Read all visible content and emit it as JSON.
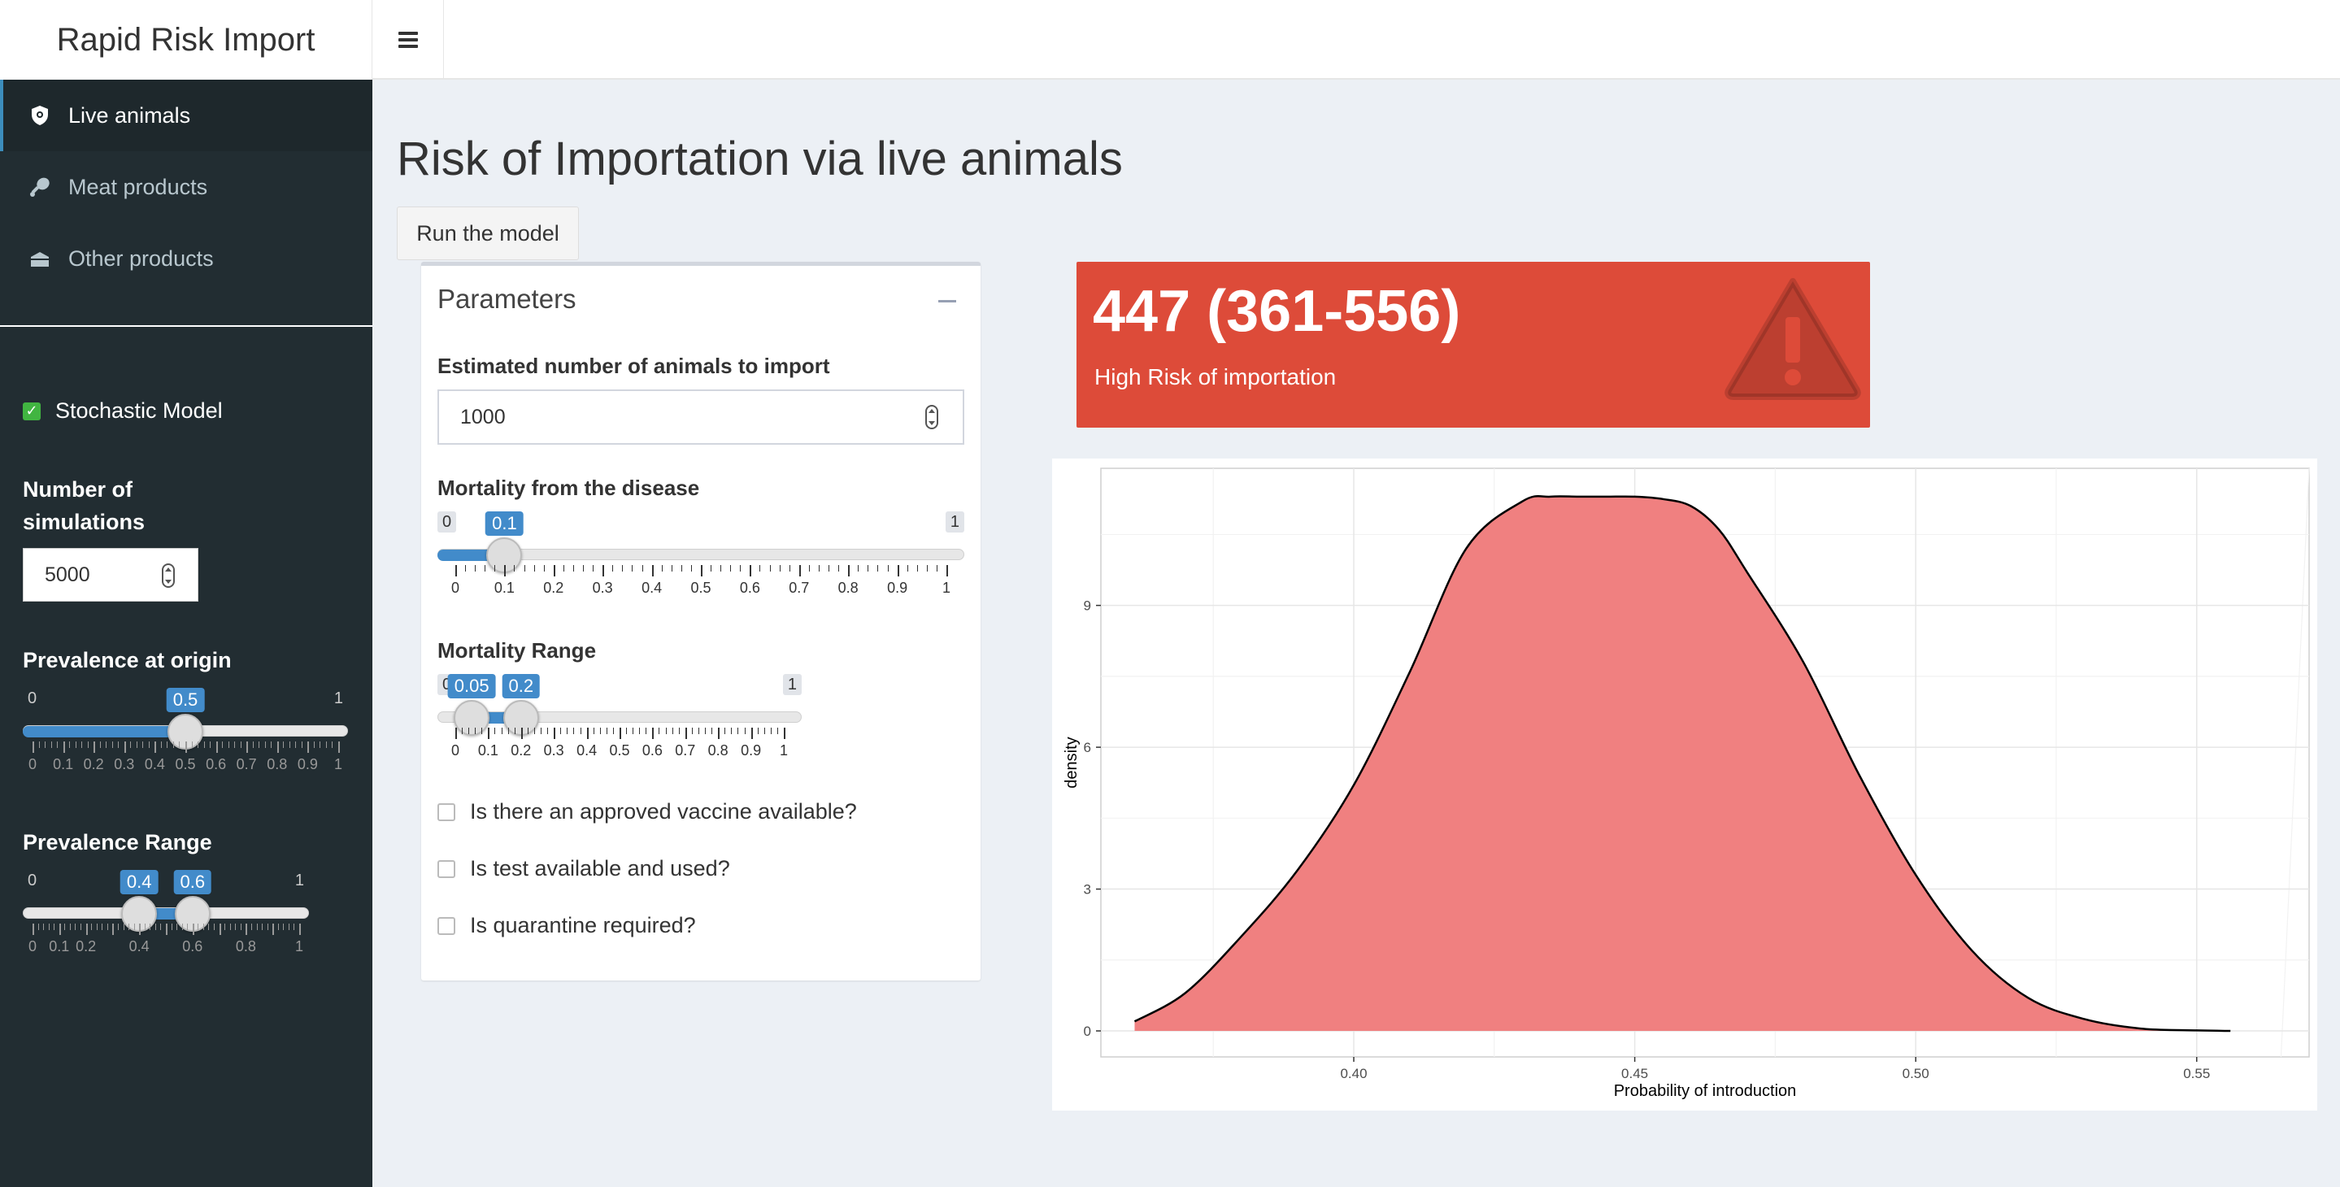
{
  "header": {
    "title": "Rapid Risk Import"
  },
  "sidebar": {
    "menu": [
      {
        "label": "Live animals",
        "icon": "shield-icon",
        "active": true
      },
      {
        "label": "Meat products",
        "icon": "drumstick-icon",
        "active": false
      },
      {
        "label": "Other products",
        "icon": "package-icon",
        "active": false
      }
    ],
    "stochastic_label": "Stochastic Model",
    "stochastic_checked": true,
    "simulations_label": "Number of simulations",
    "simulations_value": "5000",
    "prevalence": {
      "label": "Prevalence at origin",
      "min": "0",
      "max": "1",
      "value": "0.5",
      "ticks": [
        "0",
        "0.1",
        "0.2",
        "0.3",
        "0.4",
        "0.5",
        "0.6",
        "0.7",
        "0.8",
        "0.9",
        "1"
      ]
    },
    "prevalence_range": {
      "label": "Prevalence Range",
      "min": "0",
      "max": "1",
      "from": "0.4",
      "to": "0.6",
      "ticks": [
        "0",
        "0.1",
        "0.2",
        "0.4",
        "0.6",
        "0.8",
        "1"
      ]
    }
  },
  "main": {
    "title": "Risk of Importation via live animals",
    "run_button": "Run the model",
    "parameters": {
      "title": "Parameters",
      "animals_label": "Estimated number of animals to import",
      "animals_value": "1000",
      "mortality": {
        "label": "Mortality from the disease",
        "min": "0",
        "max": "1",
        "value": "0.1",
        "ticks": [
          "0",
          "0.1",
          "0.2",
          "0.3",
          "0.4",
          "0.5",
          "0.6",
          "0.7",
          "0.8",
          "0.9",
          "1"
        ]
      },
      "mortality_range": {
        "label": "Mortality Range",
        "min": "0",
        "max": "1",
        "from": "0.05",
        "to": "0.2",
        "ticks": [
          "0",
          "0.1",
          "0.2",
          "0.3",
          "0.4",
          "0.5",
          "0.6",
          "0.7",
          "0.8",
          "0.9",
          "1"
        ]
      },
      "vaccine_label": "Is there an approved vaccine available?",
      "test_label": "Is test available and used?",
      "quarantine_label": "Is quarantine required?"
    },
    "valuebox": {
      "value": "447 (361-556)",
      "subtitle": "High Risk of importation",
      "color": "#dd4b39",
      "icon": "warning-icon"
    }
  },
  "chart_data": {
    "type": "area",
    "xlabel": "Probability of introduction",
    "ylabel": "density",
    "xlim": [
      0.355,
      0.57
    ],
    "ylim": [
      -0.55,
      11.9
    ],
    "xticks": [
      "0.40",
      "0.45",
      "0.50",
      "0.55"
    ],
    "yticks": [
      "0",
      "3",
      "6",
      "9"
    ],
    "fill": "#f08080",
    "grid": true,
    "x": [
      0.361,
      0.37,
      0.38,
      0.39,
      0.4,
      0.41,
      0.42,
      0.43,
      0.435,
      0.44,
      0.445,
      0.45,
      0.455,
      0.46,
      0.465,
      0.47,
      0.48,
      0.49,
      0.5,
      0.51,
      0.52,
      0.53,
      0.54,
      0.55,
      0.556
    ],
    "y": [
      0.2,
      0.8,
      2.0,
      3.4,
      5.2,
      7.6,
      10.2,
      11.2,
      11.3,
      11.3,
      11.3,
      11.3,
      11.25,
      11.1,
      10.6,
      9.7,
      7.8,
      5.4,
      3.3,
      1.7,
      0.7,
      0.25,
      0.05,
      0.01,
      0.0
    ]
  }
}
